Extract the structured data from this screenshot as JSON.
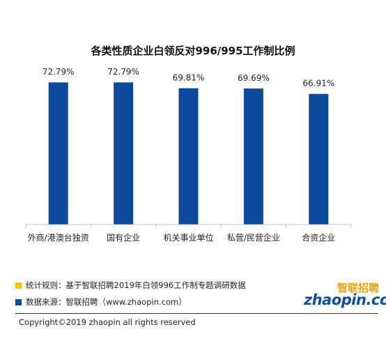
{
  "chart_data": {
    "type": "bar",
    "title": "各类性质企业白领反对996/995工作制比例",
    "categories": [
      "外商/港澳台独资",
      "国有企业",
      "机关事业单位",
      "私营/民营企业",
      "合资企业"
    ],
    "values": [
      72.79,
      72.79,
      69.81,
      69.69,
      66.91
    ],
    "value_labels": [
      "72.79%",
      "72.79%",
      "69.81%",
      "69.69%",
      "66.91%"
    ],
    "ylim": [
      0,
      100
    ],
    "grid": false,
    "bar_color": "#0e4a9c"
  },
  "legend": {
    "items": [
      {
        "text": "统计规则：基于智联招聘2019年白领996工作制专题调研数据",
        "color": "#f5c400"
      },
      {
        "text": "数据来源：智联招聘（www.zhaopin.com）",
        "color": "#0e4a9c"
      }
    ]
  },
  "logo": {
    "cn": "智联招聘",
    "en": "zhaopin.com"
  },
  "footer": {
    "copyright": "Copyright©2019 zhaopin all rights reserved"
  }
}
